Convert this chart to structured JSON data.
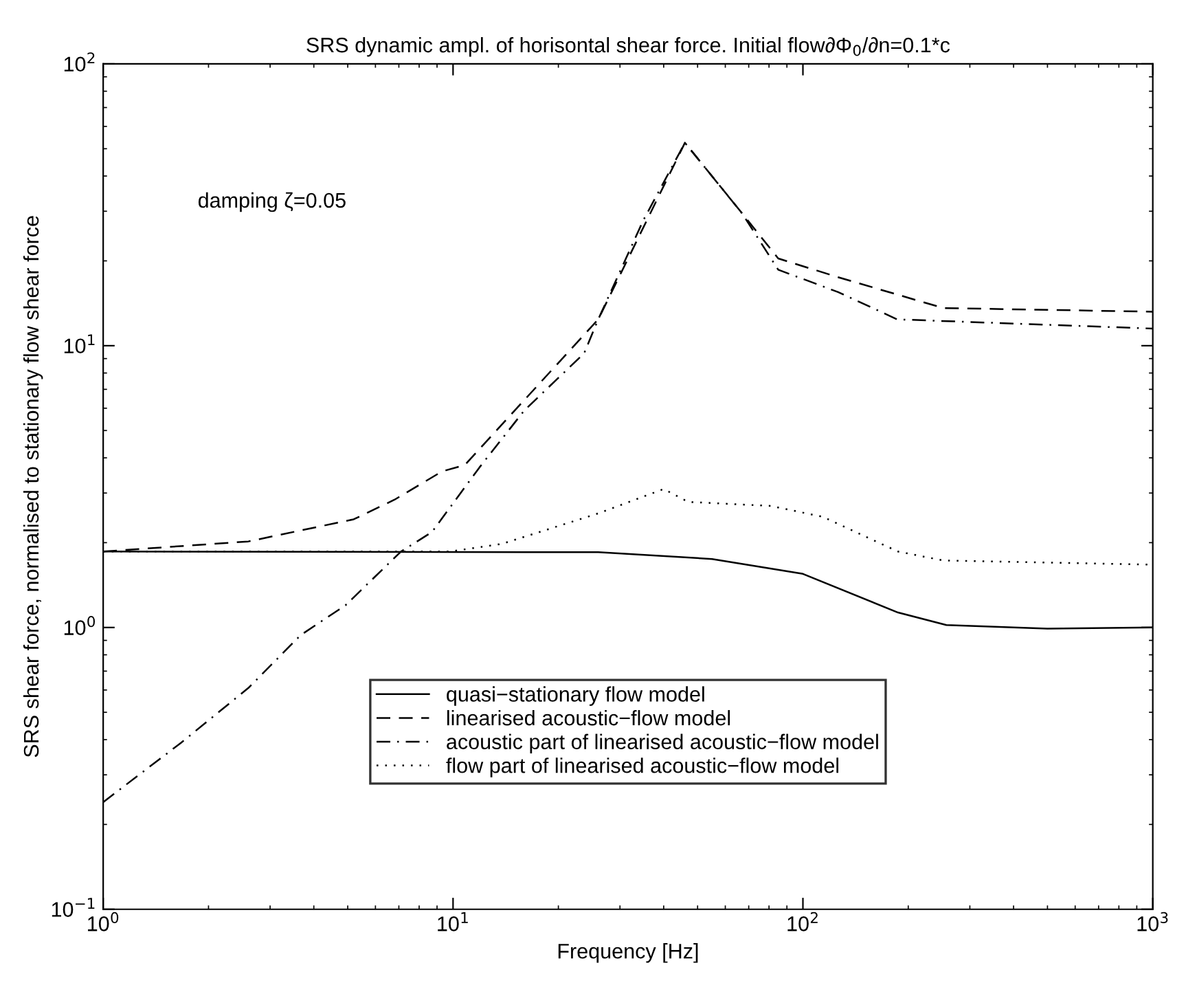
{
  "chart_data": {
    "type": "line",
    "title": "SRS dynamic ampl. of horisontal shear force. Initial flow∂Φ$_{0}$/∂n=0.1*c",
    "xlabel": "Frequency [Hz]",
    "ylabel": "SRS shear force, normalised to stationary flow shear force",
    "annotations": [
      {
        "text": "damping ζ=0.05"
      }
    ],
    "log": "xy",
    "xlim": [
      1,
      1000
    ],
    "ylim": [
      0.1,
      100
    ],
    "xticks": [
      {
        "value": 1,
        "label": "10$^{0}$"
      },
      {
        "value": 10,
        "label": "10$^{1}$"
      },
      {
        "value": 100,
        "label": "10$^{2}$"
      },
      {
        "value": 1000,
        "label": "10$^{3}$"
      }
    ],
    "yticks": [
      {
        "value": 0.1,
        "label": "10$^{−1}$"
      },
      {
        "value": 1,
        "label": "10$^{0}$"
      },
      {
        "value": 10,
        "label": "10$^{1}$"
      },
      {
        "value": 100,
        "label": "10$^{2}$"
      }
    ],
    "grid": false,
    "legend": "center",
    "marker": "none",
    "series": [
      {
        "name": "quasi−stationary flow model",
        "color": "#000000",
        "line_style": "solid",
        "x": [
          1,
          26,
          55,
          100,
          187,
          257,
          500,
          1000
        ],
        "values": [
          1.86,
          1.85,
          1.75,
          1.55,
          1.13,
          1.02,
          0.99,
          1.0
        ]
      },
      {
        "name": "linearised acoustic−flow model",
        "color": "#000000",
        "line_style": "dashed",
        "x": [
          1,
          2.6,
          5.2,
          6.8,
          9.3,
          10.8,
          26,
          46,
          67,
          85,
          126,
          252,
          1000
        ],
        "values": [
          1.86,
          2.02,
          2.42,
          2.84,
          3.58,
          3.77,
          12.4,
          52.5,
          29.5,
          20.4,
          17.5,
          13.6,
          13.2
        ]
      },
      {
        "name": "acoustic part of linearised acoustic−flow model",
        "color": "#000000",
        "line_style": "dashdot",
        "x": [
          1,
          1.67,
          2.6,
          3.67,
          4.93,
          7.1,
          8.7,
          11.9,
          16,
          23.7,
          26,
          35,
          46,
          67,
          85,
          126,
          186,
          1000
        ],
        "values": [
          0.24,
          0.39,
          0.61,
          0.94,
          1.2,
          1.86,
          2.18,
          3.7,
          5.9,
          9.4,
          12.4,
          27.9,
          52.5,
          29.5,
          18.6,
          15.5,
          12.4,
          11.5
        ]
      },
      {
        "name": "flow part of linearised acoustic−flow model",
        "color": "#000000",
        "line_style": "dotted",
        "x": [
          1,
          9.8,
          13.8,
          26,
          40,
          47,
          81,
          114,
          187,
          251,
          1000
        ],
        "values": [
          1.86,
          1.86,
          1.98,
          2.54,
          3.1,
          2.79,
          2.7,
          2.47,
          1.86,
          1.73,
          1.67
        ]
      }
    ]
  }
}
